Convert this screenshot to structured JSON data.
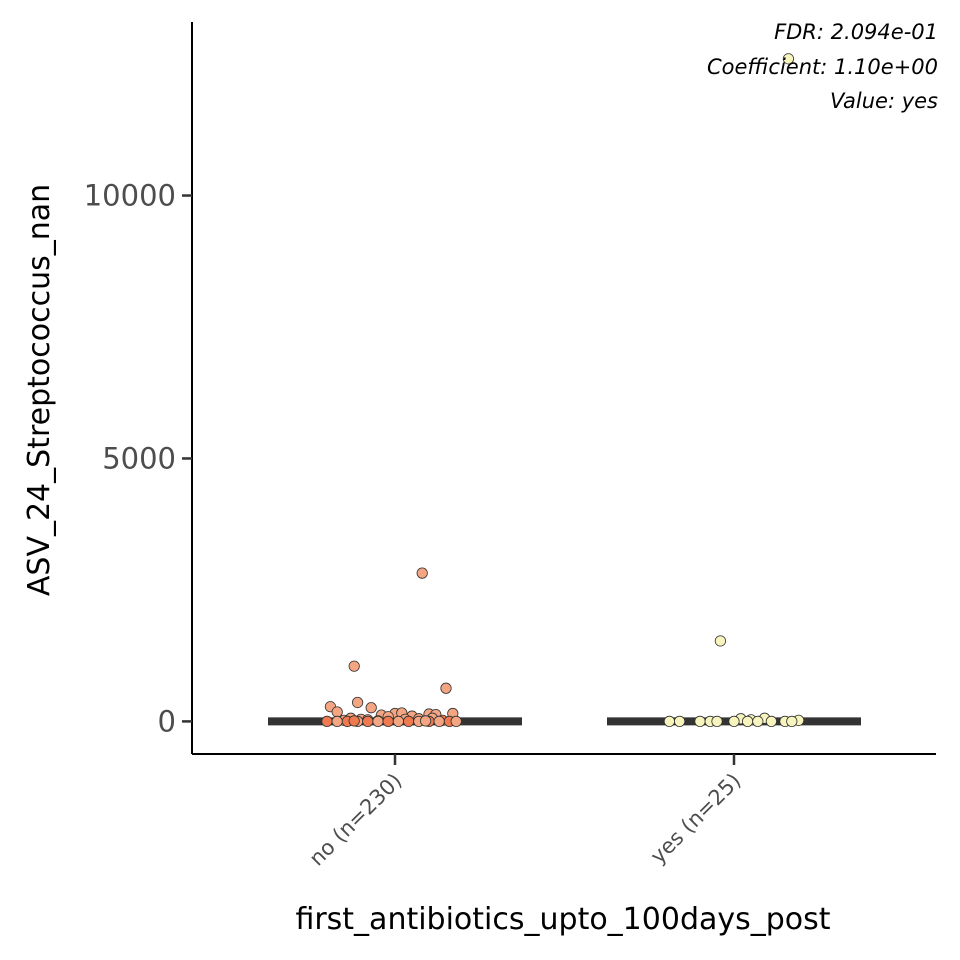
{
  "chart_data": {
    "type": "scatter",
    "xlabel": "first_antibiotics_upto_100days_post",
    "ylabel": "ASV_24_Streptococcus_nan",
    "categories": [
      "no (n=230)",
      "yes (n=25)"
    ],
    "yticks": [
      0,
      5000,
      10000
    ],
    "ylim": [
      -620,
      13300
    ],
    "grid": false,
    "annotations": [
      "FDR: 2.094e-01",
      "Coefficient: 1.10e+00",
      "Value: yes"
    ],
    "medians": [
      0,
      0
    ],
    "colors": {
      "no": "#f4a582",
      "no_dark": "#ef7a4f",
      "yes": "#f7f5bd",
      "median": "#333333"
    },
    "series": [
      {
        "category": "no (n=230)",
        "points": [
          [
            -0.19,
            280
          ],
          [
            -0.17,
            180
          ],
          [
            -0.12,
            1050
          ],
          [
            -0.11,
            360
          ],
          [
            -0.13,
            60
          ],
          [
            -0.07,
            260
          ],
          [
            0.08,
            2820
          ],
          [
            0.15,
            630
          ],
          [
            0.17,
            150
          ],
          [
            0.0,
            150
          ],
          [
            0.02,
            160
          ],
          [
            -0.04,
            120
          ],
          [
            0.1,
            140
          ],
          [
            0.12,
            130
          ],
          [
            -0.02,
            90
          ],
          [
            0.05,
            100
          ],
          [
            0.11,
            60
          ],
          [
            -0.15,
            20
          ],
          [
            -0.1,
            40
          ],
          [
            0.07,
            50
          ],
          [
            -0.08,
            30
          ],
          [
            0.03,
            40
          ],
          [
            0.14,
            20
          ],
          [
            -0.05,
            10
          ],
          [
            -0.2,
            0
          ],
          [
            -0.17,
            0
          ],
          [
            -0.14,
            0
          ],
          [
            -0.11,
            0
          ],
          [
            -0.08,
            0
          ],
          [
            -0.05,
            0
          ],
          [
            -0.02,
            0
          ],
          [
            0.01,
            0
          ],
          [
            0.04,
            0
          ],
          [
            0.07,
            0
          ],
          [
            0.1,
            0
          ],
          [
            0.13,
            0
          ],
          [
            0.16,
            0
          ],
          [
            0.18,
            0
          ],
          [
            -0.12,
            10
          ],
          [
            0.09,
            10
          ]
        ]
      },
      {
        "category": "yes (n=25)",
        "points": [
          [
            0.16,
            12600
          ],
          [
            -0.04,
            1530
          ],
          [
            0.02,
            50
          ],
          [
            0.09,
            60
          ],
          [
            0.05,
            30
          ],
          [
            0.19,
            20
          ],
          [
            -0.19,
            0
          ],
          [
            -0.16,
            0
          ],
          [
            -0.1,
            0
          ],
          [
            -0.07,
            0
          ],
          [
            0.0,
            0
          ],
          [
            0.04,
            0
          ],
          [
            0.07,
            0
          ],
          [
            0.11,
            0
          ],
          [
            0.15,
            0
          ],
          [
            -0.05,
            0
          ],
          [
            0.17,
            0
          ]
        ]
      }
    ]
  }
}
